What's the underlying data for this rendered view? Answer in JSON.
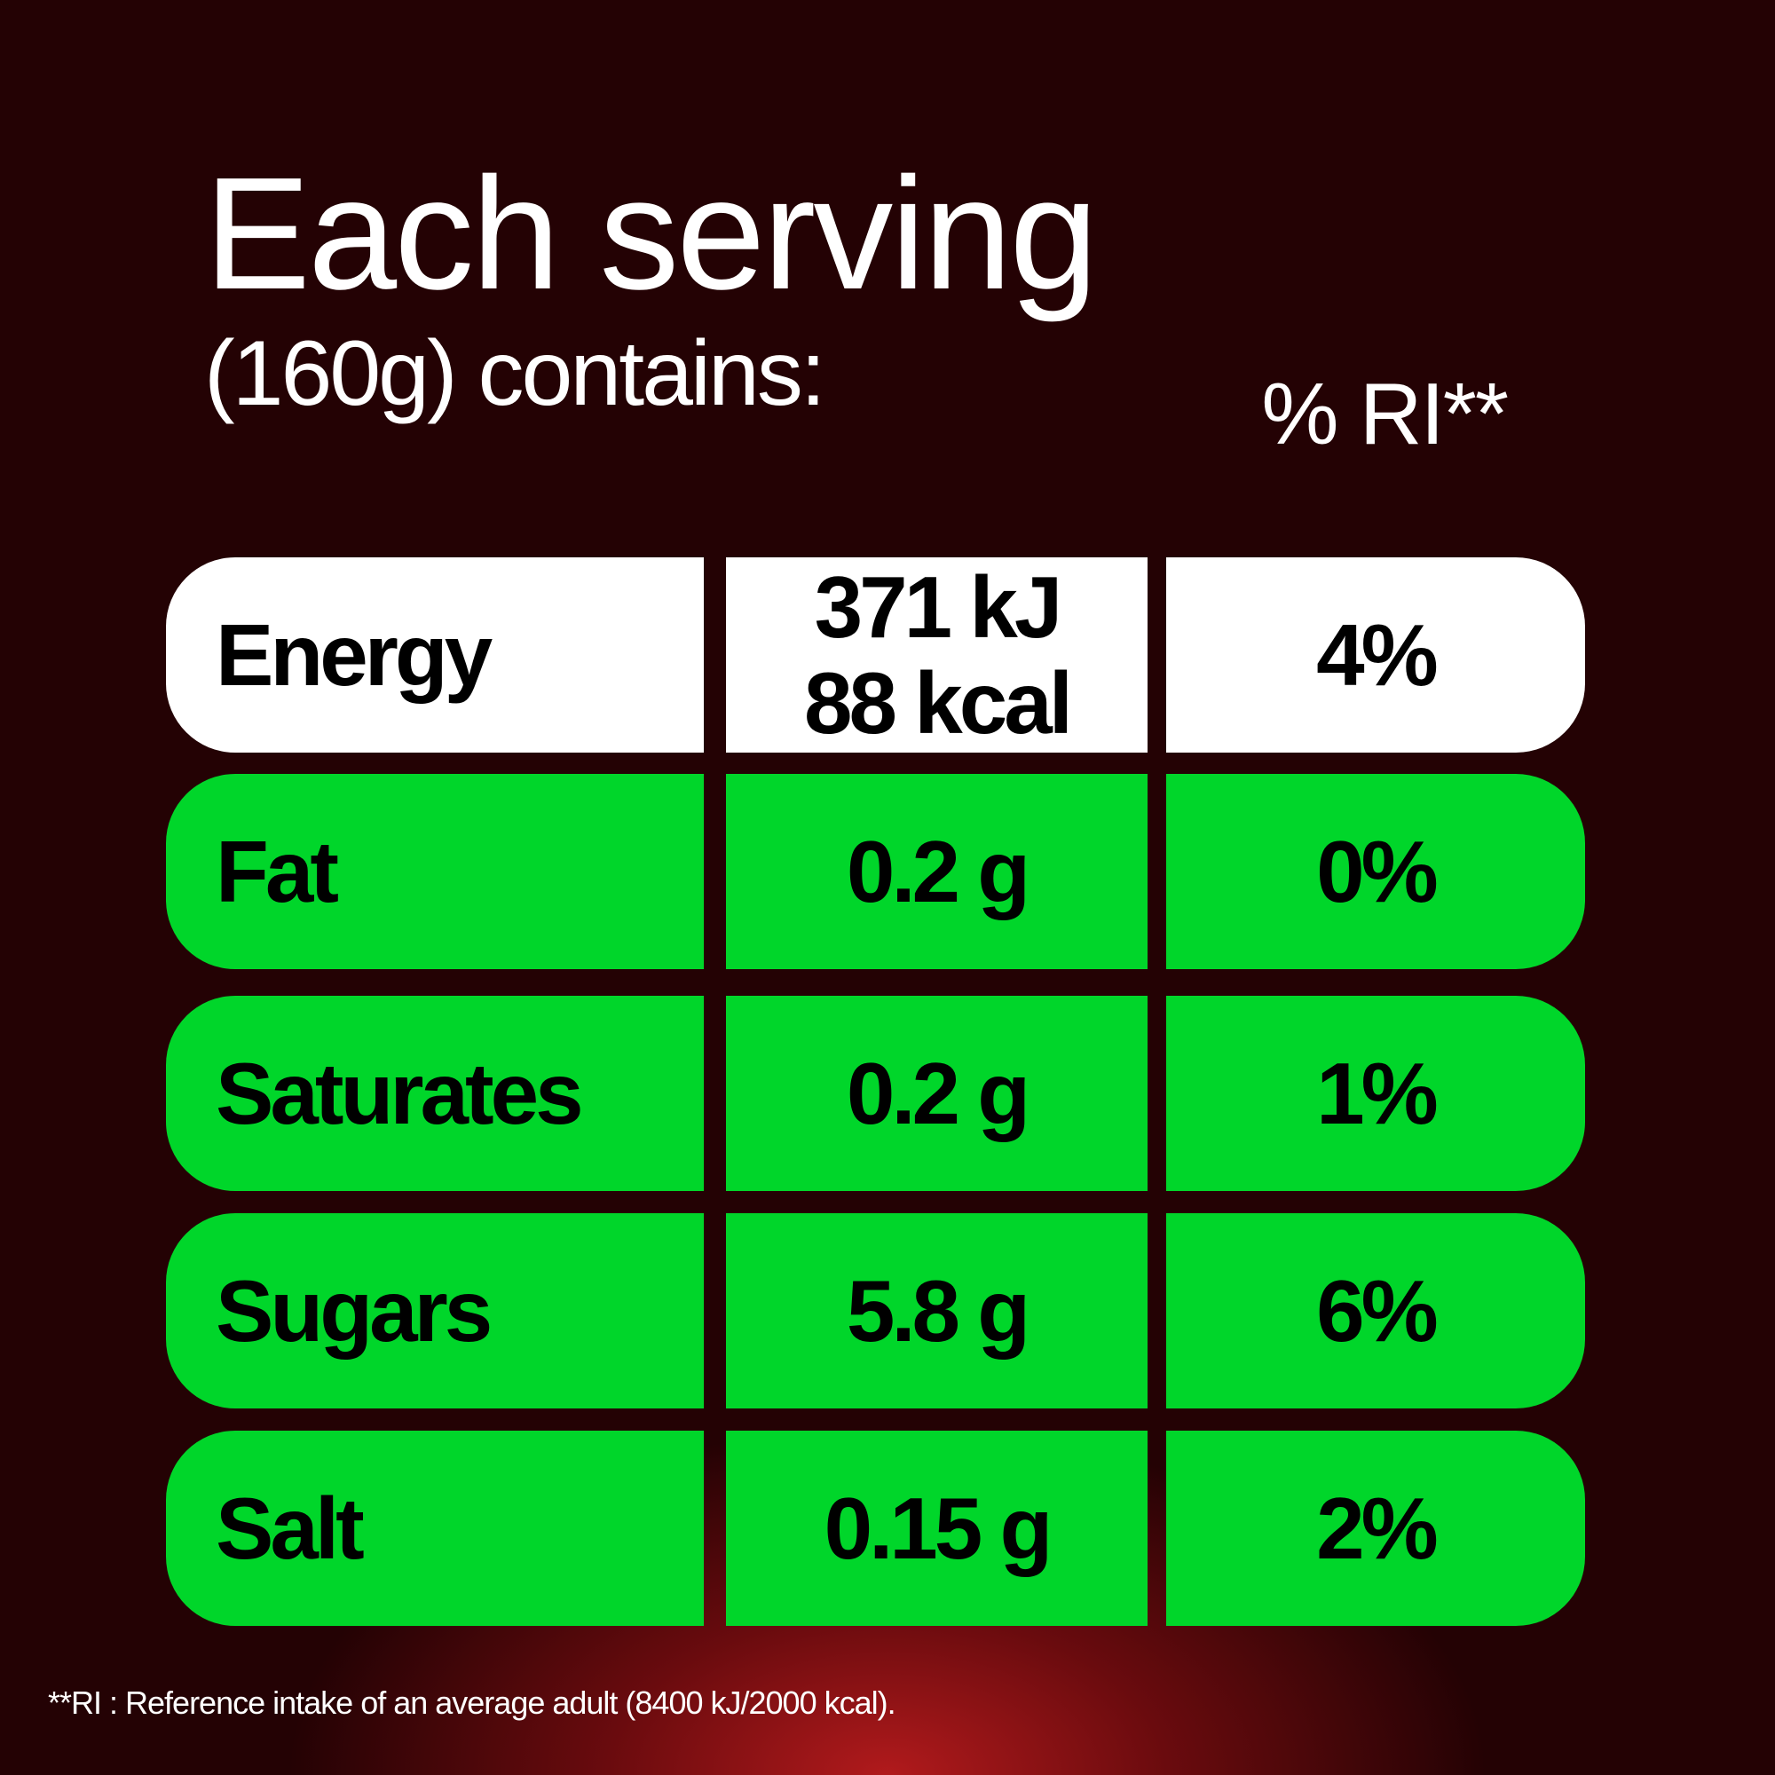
{
  "header": {
    "title": "Each serving",
    "subtitle": "(160g) contains:",
    "ri_label": "% RI**"
  },
  "table": {
    "rows": [
      {
        "nutrient": "Energy",
        "amount": [
          "371 kJ",
          "88 kcal"
        ],
        "ri": "4%",
        "color": "#ffffff"
      },
      {
        "nutrient": "Fat",
        "amount": [
          "0.2 g"
        ],
        "ri": "0%",
        "color": "#00d62a"
      },
      {
        "nutrient": "Saturates",
        "amount": [
          "0.2 g"
        ],
        "ri": "1%",
        "color": "#00d62a"
      },
      {
        "nutrient": "Sugars",
        "amount": [
          "5.8 g"
        ],
        "ri": "6%",
        "color": "#00d62a"
      },
      {
        "nutrient": "Salt",
        "amount": [
          "0.15 g"
        ],
        "ri": "2%",
        "color": "#00d62a"
      }
    ]
  },
  "footnote": "**RI : Reference intake of an average adult (8400 kJ/2000 kcal)."
}
